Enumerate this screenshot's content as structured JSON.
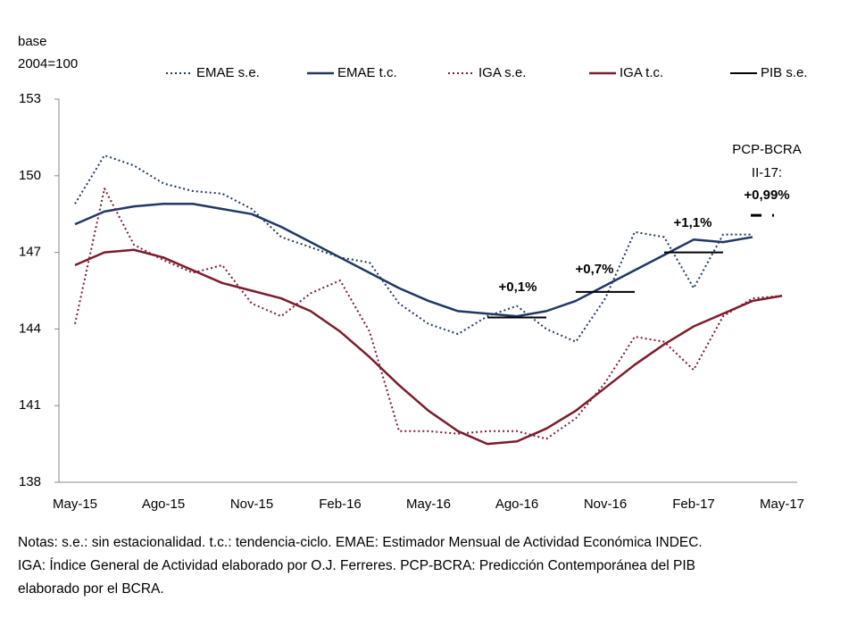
{
  "chart_data": {
    "type": "line",
    "y_label": [
      "base",
      "2004=100"
    ],
    "categories": [
      "May-15",
      null,
      null,
      "Ago-15",
      null,
      null,
      "Nov-15",
      null,
      null,
      "Feb-16",
      null,
      null,
      "May-16",
      null,
      null,
      "Ago-16",
      null,
      null,
      "Nov-16",
      null,
      null,
      "Feb-17",
      null,
      null,
      "May-17"
    ],
    "ylim": [
      138,
      153
    ],
    "yticks": [
      138,
      141,
      144,
      147,
      150,
      153
    ],
    "series": [
      {
        "name": "EMAE s.e.",
        "color": "#1f3864",
        "style": "dotted",
        "values": [
          148.9,
          150.8,
          150.4,
          149.7,
          149.4,
          149.3,
          148.7,
          147.6,
          147.2,
          146.8,
          146.6,
          145.0,
          144.2,
          143.8,
          144.5,
          144.9,
          144.0,
          143.5,
          145.2,
          147.8,
          147.6,
          145.6,
          147.7,
          147.7,
          null
        ]
      },
      {
        "name": "EMAE t.c.",
        "color": "#1f3864",
        "style": "solid",
        "values": [
          148.1,
          148.6,
          148.8,
          148.9,
          148.9,
          148.7,
          148.5,
          148.0,
          147.4,
          146.8,
          146.2,
          145.6,
          145.1,
          144.7,
          144.6,
          144.5,
          144.7,
          145.1,
          145.7,
          146.3,
          146.9,
          147.5,
          147.4,
          147.6,
          null
        ]
      },
      {
        "name": "IGA s.e.",
        "color": "#7b1c2c",
        "style": "dotted",
        "values": [
          144.2,
          149.5,
          147.3,
          146.7,
          146.2,
          146.5,
          145.0,
          144.5,
          145.4,
          145.9,
          143.9,
          140.0,
          140.0,
          139.9,
          140.0,
          140.0,
          139.7,
          140.5,
          141.9,
          143.7,
          143.5,
          142.4,
          144.5,
          145.2,
          145.3
        ]
      },
      {
        "name": "IGA t.c.",
        "color": "#7b1c2c",
        "style": "solid",
        "values": [
          146.5,
          147.0,
          147.1,
          146.8,
          146.3,
          145.8,
          145.5,
          145.2,
          144.7,
          143.9,
          142.9,
          141.8,
          140.8,
          140.0,
          139.5,
          139.6,
          140.1,
          140.8,
          141.7,
          142.6,
          143.4,
          144.1,
          144.6,
          145.1,
          145.3
        ]
      },
      {
        "name": "PIB s.e.",
        "color": "#000000",
        "style": "step",
        "values": [
          null,
          null,
          null,
          null,
          null,
          null,
          null,
          null,
          null,
          null,
          null,
          null,
          null,
          null,
          144.45,
          144.45,
          144.45,
          145.45,
          145.45,
          145.45,
          147.0,
          147.0,
          147.0,
          null,
          null
        ]
      }
    ],
    "forecast": {
      "value": 148.45,
      "label": [
        "PCP-BCRA",
        "II-17:",
        "+0,99%"
      ]
    },
    "annotations": [
      "+0,1%",
      "+0,7%",
      "+1,1%"
    ],
    "notes": [
      "Notas: s.e.: sin estacionalidad. t.c.: tendencia-ciclo. EMAE: Estimador Mensual de Actividad Económica INDEC.",
      "IGA: Índice General de Actividad elaborado por O.J. Ferreres. PCP-BCRA: Predicción Contemporánea del PIB",
      "elaborado por el BCRA."
    ]
  }
}
